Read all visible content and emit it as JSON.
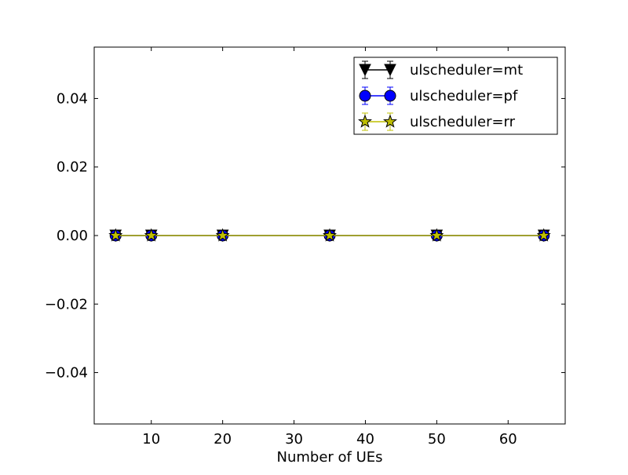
{
  "chart_data": {
    "type": "line",
    "xlabel": "Number of UEs",
    "ylabel": "",
    "title": "",
    "xlim": [
      2,
      68
    ],
    "ylim": [
      -0.055,
      0.055
    ],
    "x_ticks": [
      10,
      20,
      30,
      40,
      50,
      60
    ],
    "x_tick_labels": [
      "10",
      "20",
      "30",
      "40",
      "50",
      "60"
    ],
    "y_ticks": [
      0.04,
      0.02,
      0.0,
      -0.02,
      -0.04
    ],
    "y_tick_labels": [
      "0.04",
      "0.02",
      "0.00",
      "−0.02",
      "−0.04"
    ],
    "grid": false,
    "legend_position": "top-right",
    "x": [
      5,
      10,
      20,
      35,
      50,
      65
    ],
    "series": [
      {
        "name": "ulscheduler=mt",
        "marker": "triangle-down",
        "color": "#000000",
        "marker_fill": "#000000",
        "values": [
          0,
          0,
          0,
          0,
          0,
          0
        ]
      },
      {
        "name": "ulscheduler=pf",
        "marker": "circle",
        "color": "#0000ff",
        "marker_fill": "#0000ff",
        "values": [
          0,
          0,
          0,
          0,
          0,
          0
        ]
      },
      {
        "name": "ulscheduler=rr",
        "marker": "star",
        "color": "#bfbf00",
        "marker_fill": "#bfbf00",
        "values": [
          0,
          0,
          0,
          0,
          0,
          0
        ]
      }
    ]
  }
}
